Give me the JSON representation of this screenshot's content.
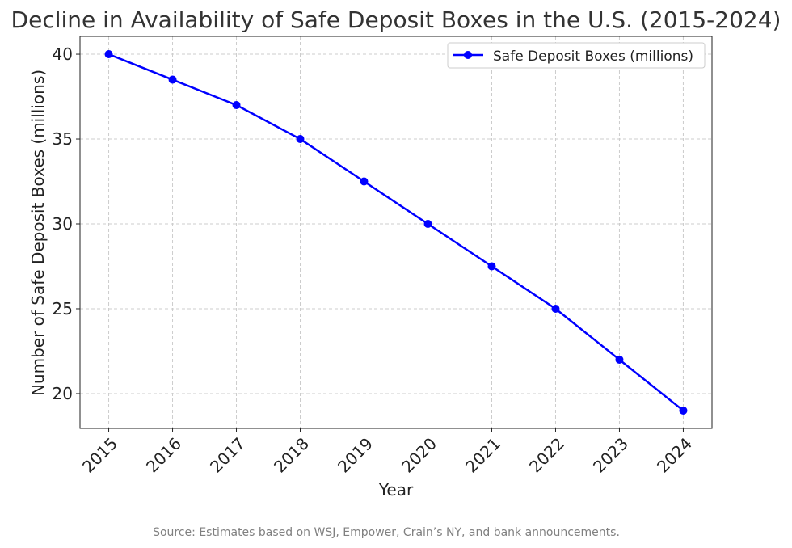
{
  "chart_data": {
    "type": "line",
    "title": "Decline in Availability of Safe Deposit Boxes in the U.S. (2015-2024)",
    "xlabel": "Year",
    "ylabel": "Number of Safe Deposit Boxes (millions)",
    "x": [
      2015,
      2016,
      2017,
      2018,
      2019,
      2020,
      2021,
      2022,
      2023,
      2024
    ],
    "xticks": [
      "2015",
      "2016",
      "2017",
      "2018",
      "2019",
      "2020",
      "2021",
      "2022",
      "2023",
      "2024"
    ],
    "yticks": [
      20,
      25,
      30,
      35,
      40
    ],
    "xlim": [
      2014.55,
      2024.45
    ],
    "ylim": [
      17.95,
      41.05
    ],
    "grid": true,
    "legend_placement": "top-right",
    "series": [
      {
        "name": "Safe Deposit Boxes (millions)",
        "color": "#0000ff",
        "marker": "circle",
        "values": [
          40,
          38.5,
          37,
          35,
          32.5,
          30,
          27.5,
          25,
          22,
          19
        ]
      }
    ],
    "annotation": "Source: Estimates based on WSJ, Empower, Crain’s NY, and bank announcements."
  }
}
